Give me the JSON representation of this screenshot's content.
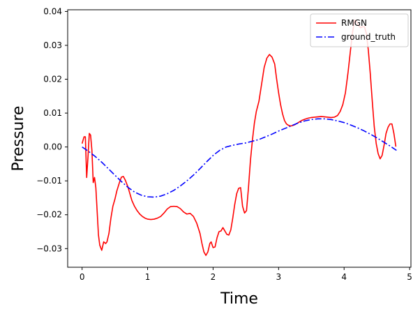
{
  "chart_data": {
    "type": "line",
    "title": "",
    "xlabel": "Time",
    "ylabel": "Pressure",
    "xlim": [
      -0.22,
      5.02
    ],
    "ylim": [
      -0.0355,
      0.0405
    ],
    "xticks": [
      0,
      1,
      2,
      3,
      4,
      5
    ],
    "xtick_labels": [
      "0",
      "1",
      "2",
      "3",
      "4",
      "5"
    ],
    "yticks": [
      -0.03,
      -0.02,
      -0.01,
      0.0,
      0.01,
      0.02,
      0.03,
      0.04
    ],
    "ytick_labels": [
      "−0.03",
      "−0.02",
      "−0.01",
      "0.00",
      "0.01",
      "0.02",
      "0.03",
      "0.04"
    ],
    "grid": false,
    "legend_position": "top-right",
    "series": [
      {
        "name": "RMGN",
        "color": "#ff0000",
        "style": "solid",
        "x": [
          0.0,
          0.03,
          0.05,
          0.07,
          0.09,
          0.11,
          0.13,
          0.15,
          0.17,
          0.19,
          0.21,
          0.23,
          0.25,
          0.27,
          0.3,
          0.33,
          0.36,
          0.38,
          0.41,
          0.44,
          0.47,
          0.5,
          0.53,
          0.57,
          0.6,
          0.63,
          0.66,
          0.7,
          0.73,
          0.76,
          0.8,
          0.84,
          0.88,
          0.92,
          0.96,
          1.0,
          1.05,
          1.1,
          1.15,
          1.2,
          1.25,
          1.3,
          1.35,
          1.4,
          1.45,
          1.5,
          1.55,
          1.6,
          1.65,
          1.7,
          1.75,
          1.8,
          1.83,
          1.86,
          1.89,
          1.92,
          1.95,
          1.97,
          2.0,
          2.03,
          2.06,
          2.09,
          2.12,
          2.15,
          2.18,
          2.21,
          2.24,
          2.27,
          2.3,
          2.33,
          2.36,
          2.39,
          2.42,
          2.45,
          2.48,
          2.51,
          2.54,
          2.57,
          2.6,
          2.63,
          2.66,
          2.7,
          2.74,
          2.78,
          2.82,
          2.86,
          2.9,
          2.94,
          2.97,
          3.0,
          3.03,
          3.06,
          3.09,
          3.12,
          3.15,
          3.18,
          3.21,
          3.25,
          3.3,
          3.35,
          3.4,
          3.45,
          3.5,
          3.55,
          3.6,
          3.65,
          3.7,
          3.75,
          3.8,
          3.85,
          3.9,
          3.94,
          3.98,
          4.02,
          4.06,
          4.1,
          4.13,
          4.16,
          4.19,
          4.22,
          4.25,
          4.28,
          4.31,
          4.34,
          4.37,
          4.4,
          4.43,
          4.46,
          4.49,
          4.52,
          4.55,
          4.58,
          4.61,
          4.64,
          4.67,
          4.7,
          4.73,
          4.76,
          4.79
        ],
        "y": [
          0.001,
          0.003,
          0.003,
          -0.009,
          -0.003,
          0.004,
          0.0035,
          -0.001,
          -0.0105,
          -0.009,
          -0.012,
          -0.019,
          -0.026,
          -0.029,
          -0.0305,
          -0.028,
          -0.0285,
          -0.028,
          -0.0255,
          -0.021,
          -0.0175,
          -0.0155,
          -0.013,
          -0.0105,
          -0.0089,
          -0.0087,
          -0.0098,
          -0.0118,
          -0.0138,
          -0.0158,
          -0.0175,
          -0.0188,
          -0.0198,
          -0.0205,
          -0.021,
          -0.0213,
          -0.0214,
          -0.0213,
          -0.021,
          -0.0205,
          -0.0195,
          -0.0183,
          -0.0176,
          -0.0175,
          -0.0176,
          -0.0182,
          -0.0192,
          -0.0198,
          -0.0196,
          -0.0205,
          -0.0225,
          -0.0255,
          -0.0285,
          -0.031,
          -0.032,
          -0.031,
          -0.0285,
          -0.028,
          -0.0297,
          -0.0295,
          -0.0268,
          -0.025,
          -0.0248,
          -0.0238,
          -0.0248,
          -0.0258,
          -0.026,
          -0.0245,
          -0.021,
          -0.017,
          -0.0138,
          -0.0122,
          -0.012,
          -0.0175,
          -0.0195,
          -0.0188,
          -0.012,
          -0.004,
          0.002,
          0.007,
          0.0105,
          0.0135,
          0.0185,
          0.0235,
          0.0262,
          0.0273,
          0.0265,
          0.0245,
          0.02,
          0.016,
          0.0125,
          0.0098,
          0.0078,
          0.0068,
          0.0064,
          0.0062,
          0.0063,
          0.0066,
          0.0072,
          0.0078,
          0.0082,
          0.0085,
          0.0087,
          0.0088,
          0.0089,
          0.009,
          0.0089,
          0.0088,
          0.0087,
          0.0088,
          0.0093,
          0.0105,
          0.0125,
          0.016,
          0.022,
          0.029,
          0.034,
          0.0375,
          0.037,
          0.0358,
          0.0352,
          0.0355,
          0.0355,
          0.0335,
          0.0285,
          0.0215,
          0.0135,
          0.006,
          0.001,
          -0.002,
          -0.0035,
          -0.0025,
          0.0005,
          0.004,
          0.0058,
          0.0068,
          0.0068,
          0.004,
          0.0001
        ]
      },
      {
        "name": "ground_truth",
        "color": "#0000ff",
        "style": "dashdot",
        "x": [
          0.0,
          0.1,
          0.2,
          0.3,
          0.4,
          0.5,
          0.6,
          0.7,
          0.8,
          0.9,
          1.0,
          1.1,
          1.2,
          1.3,
          1.4,
          1.5,
          1.6,
          1.7,
          1.8,
          1.9,
          2.0,
          2.1,
          2.2,
          2.3,
          2.4,
          2.5,
          2.6,
          2.7,
          2.8,
          2.9,
          3.0,
          3.1,
          3.2,
          3.3,
          3.4,
          3.5,
          3.6,
          3.7,
          3.8,
          3.9,
          4.0,
          4.1,
          4.2,
          4.3,
          4.4,
          4.5,
          4.6,
          4.7,
          4.8
        ],
        "y": [
          0.0,
          -0.0013,
          -0.0028,
          -0.0045,
          -0.0064,
          -0.0083,
          -0.0102,
          -0.0119,
          -0.0133,
          -0.0142,
          -0.0147,
          -0.0148,
          -0.0145,
          -0.0138,
          -0.0128,
          -0.0115,
          -0.01,
          -0.0083,
          -0.0064,
          -0.0044,
          -0.0025,
          -0.001,
          0.0,
          0.0005,
          0.0009,
          0.0012,
          0.0017,
          0.0022,
          0.003,
          0.0038,
          0.0047,
          0.0055,
          0.0063,
          0.0071,
          0.0077,
          0.0081,
          0.0083,
          0.0083,
          0.0081,
          0.0077,
          0.0072,
          0.0065,
          0.0057,
          0.0048,
          0.0038,
          0.0027,
          0.0015,
          0.0003,
          -0.001
        ]
      }
    ]
  }
}
